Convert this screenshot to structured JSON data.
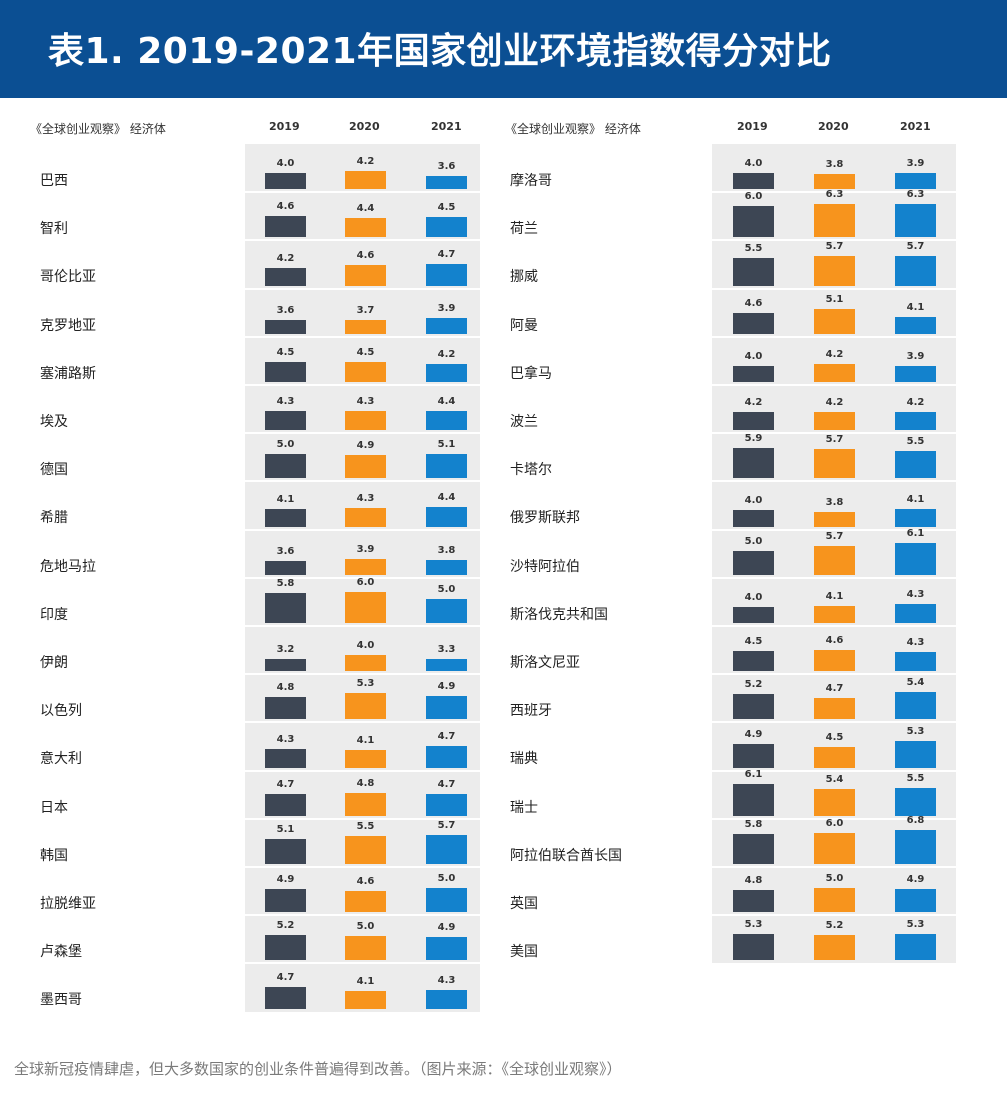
{
  "title": "表1. 2019-2021年国家创业环境指数得分对比",
  "caption": "全球新冠疫情肆虐，但大多数国家的创业条件普遍得到改善。（图片来源：《全球创业观察》）",
  "colors": {
    "header_bg": "#0b4f93",
    "y2019": "#3d4654",
    "y2020": "#f7941d",
    "y2021": "#1382cd"
  },
  "chart_data": {
    "type": "bar",
    "title": "表1. 2019-2021年国家创业环境指数得分对比",
    "category_header": "《全球创业观察》 经济体",
    "years": [
      "2019",
      "2020",
      "2021"
    ],
    "series": [
      {
        "name": "2019",
        "color": "#3d4654"
      },
      {
        "name": "2020",
        "color": "#f7941d"
      },
      {
        "name": "2021",
        "color": "#1382cd"
      }
    ],
    "ylim": [
      0,
      7
    ],
    "panels": [
      {
        "rows": [
          {
            "country": "巴西",
            "values": [
              4.0,
              4.2,
              3.6
            ]
          },
          {
            "country": "智利",
            "values": [
              4.6,
              4.4,
              4.5
            ]
          },
          {
            "country": "哥伦比亚",
            "values": [
              4.2,
              4.6,
              4.7
            ]
          },
          {
            "country": "克罗地亚",
            "values": [
              3.6,
              3.7,
              3.9
            ]
          },
          {
            "country": "塞浦路斯",
            "values": [
              4.5,
              4.5,
              4.2
            ]
          },
          {
            "country": "埃及",
            "values": [
              4.3,
              4.3,
              4.4
            ]
          },
          {
            "country": "德国",
            "values": [
              5.0,
              4.9,
              5.1
            ]
          },
          {
            "country": "希腊",
            "values": [
              4.1,
              4.3,
              4.4
            ]
          },
          {
            "country": "危地马拉",
            "values": [
              3.6,
              3.9,
              3.8
            ]
          },
          {
            "country": "印度",
            "values": [
              5.8,
              6.0,
              5.0
            ]
          },
          {
            "country": "伊朗",
            "values": [
              3.2,
              4.0,
              3.3
            ]
          },
          {
            "country": "以色列",
            "values": [
              4.8,
              5.3,
              4.9
            ]
          },
          {
            "country": "意大利",
            "values": [
              4.3,
              4.1,
              4.7
            ]
          },
          {
            "country": "日本",
            "values": [
              4.7,
              4.8,
              4.7
            ]
          },
          {
            "country": "韩国",
            "values": [
              5.1,
              5.5,
              5.7
            ]
          },
          {
            "country": "拉脱维亚",
            "values": [
              4.9,
              4.6,
              5.0
            ]
          },
          {
            "country": "卢森堡",
            "values": [
              5.2,
              5.0,
              4.9
            ]
          },
          {
            "country": "墨西哥",
            "values": [
              4.7,
              4.1,
              4.3
            ]
          }
        ]
      },
      {
        "rows": [
          {
            "country": "摩洛哥",
            "values": [
              4.0,
              3.8,
              3.9
            ]
          },
          {
            "country": "荷兰",
            "values": [
              6.0,
              6.3,
              6.3
            ]
          },
          {
            "country": "挪威",
            "values": [
              5.5,
              5.7,
              5.7
            ]
          },
          {
            "country": "阿曼",
            "values": [
              4.6,
              5.1,
              4.1
            ]
          },
          {
            "country": "巴拿马",
            "values": [
              4.0,
              4.2,
              3.9
            ]
          },
          {
            "country": "波兰",
            "values": [
              4.2,
              4.2,
              4.2
            ]
          },
          {
            "country": "卡塔尔",
            "values": [
              5.9,
              5.7,
              5.5
            ]
          },
          {
            "country": "俄罗斯联邦",
            "values": [
              4.0,
              3.8,
              4.1
            ]
          },
          {
            "country": "沙特阿拉伯",
            "values": [
              5.0,
              5.7,
              6.1
            ]
          },
          {
            "country": "斯洛伐克共和国",
            "values": [
              4.0,
              4.1,
              4.3
            ]
          },
          {
            "country": "斯洛文尼亚",
            "values": [
              4.5,
              4.6,
              4.3
            ]
          },
          {
            "country": "西班牙",
            "values": [
              5.2,
              4.7,
              5.4
            ]
          },
          {
            "country": "瑞典",
            "values": [
              4.9,
              4.5,
              5.3
            ]
          },
          {
            "country": "瑞士",
            "values": [
              6.1,
              5.4,
              5.5
            ]
          },
          {
            "country": "阿拉伯联合酋长国",
            "values": [
              5.8,
              6.0,
              6.8
            ]
          },
          {
            "country": "英国",
            "values": [
              4.8,
              5.0,
              4.9
            ]
          },
          {
            "country": "美国",
            "values": [
              5.3,
              5.2,
              5.3
            ]
          }
        ]
      }
    ]
  }
}
